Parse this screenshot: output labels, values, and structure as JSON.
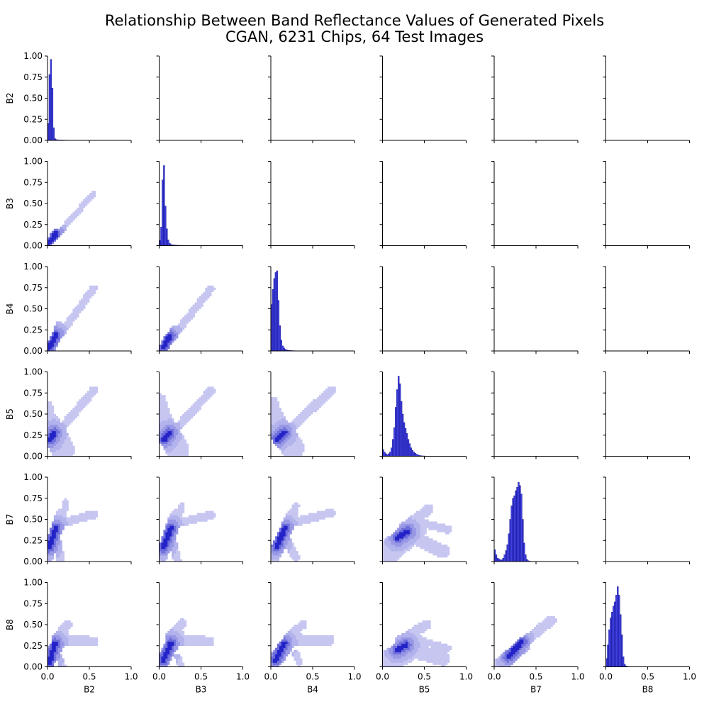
{
  "title_lines": [
    "Relationship Between Band Reflectance Values of Generated Pixels",
    "CGAN, 6231 Chips, 64 Test Images"
  ],
  "colors": {
    "hist_fill": "#1f1fd6",
    "hist_edge": "#0a0a8a",
    "density_light": "#c9c9f2",
    "density_dark": "#2323c8",
    "axis": "#000000"
  },
  "chart_data": {
    "type": "pairplot",
    "bands": [
      "B2",
      "B3",
      "B4",
      "B5",
      "B7",
      "B8"
    ],
    "xlim": [
      0.0,
      1.0
    ],
    "ylim": [
      0.0,
      1.0
    ],
    "x_ticks": [
      "0.0",
      "0.5",
      "1.0"
    ],
    "y_ticks": [
      "0.00",
      "0.25",
      "0.50",
      "0.75",
      "1.00"
    ],
    "grid": false,
    "diagonal_type": "histogram",
    "diagonal_histograms": [
      {
        "band": "B2",
        "bin_width": 0.0167,
        "values": [
          0.2,
          0.78,
          0.96,
          0.62,
          0.15,
          0.02,
          0.01,
          0.005,
          0.005,
          0.005,
          0.004,
          0.004,
          0.003,
          0.003,
          0.003,
          0.002,
          0.002,
          0.002,
          0.002,
          0.002,
          0.001,
          0.001,
          0.001,
          0.001,
          0.001,
          0.001,
          0.001,
          0.001,
          0.001,
          0.001,
          0.001,
          0.001,
          0.001,
          0.001,
          0.001,
          0.001
        ]
      },
      {
        "band": "B3",
        "bin_width": 0.0167,
        "values": [
          0.06,
          0.22,
          0.78,
          0.95,
          0.47,
          0.2,
          0.07,
          0.03,
          0.015,
          0.01,
          0.008,
          0.006,
          0.005,
          0.004,
          0.004,
          0.003,
          0.003,
          0.002,
          0.002,
          0.002,
          0.001,
          0.001,
          0.001,
          0.001,
          0.001,
          0.001,
          0.001,
          0.001,
          0.001,
          0.001,
          0.001,
          0.001,
          0.001,
          0.001,
          0.001,
          0.001
        ]
      },
      {
        "band": "B4",
        "bin_width": 0.0167,
        "values": [
          0.55,
          0.73,
          0.86,
          0.93,
          0.95,
          0.6,
          0.3,
          0.13,
          0.06,
          0.035,
          0.02,
          0.012,
          0.008,
          0.006,
          0.005,
          0.004,
          0.003,
          0.003,
          0.002,
          0.002,
          0.002,
          0.001,
          0.001,
          0.001,
          0.001,
          0.001,
          0.001,
          0.001,
          0.001,
          0.001,
          0.001,
          0.001,
          0.001,
          0.001,
          0.001,
          0.001,
          0.001,
          0.001,
          0.001,
          0.001,
          0.001,
          0.001,
          0.001,
          0.001,
          0.001,
          0.001,
          0.001
        ]
      },
      {
        "band": "B5",
        "bin_width": 0.0167,
        "values": [
          0.08,
          0.05,
          0.03,
          0.02,
          0.03,
          0.05,
          0.1,
          0.2,
          0.34,
          0.58,
          0.79,
          0.95,
          0.86,
          0.65,
          0.5,
          0.4,
          0.33,
          0.27,
          0.2,
          0.15,
          0.1,
          0.07,
          0.05,
          0.035,
          0.025,
          0.015,
          0.01,
          0.007,
          0.005,
          0.004,
          0.003,
          0.002,
          0.002,
          0.002,
          0.001,
          0.001,
          0.001,
          0.001,
          0.001,
          0.001,
          0.001,
          0.001,
          0.001,
          0.001,
          0.001,
          0.001,
          0.001
        ]
      },
      {
        "band": "B7",
        "bin_width": 0.0167,
        "values": [
          0.14,
          0.08,
          0.04,
          0.03,
          0.02,
          0.02,
          0.04,
          0.08,
          0.13,
          0.2,
          0.33,
          0.5,
          0.66,
          0.75,
          0.78,
          0.84,
          0.88,
          0.94,
          0.9,
          0.8,
          0.5,
          0.22,
          0.08,
          0.025,
          0.01,
          0.005,
          0.003,
          0.002,
          0.002,
          0.001,
          0.001,
          0.001,
          0.001,
          0.001,
          0.001,
          0.001,
          0.001,
          0.001,
          0.001,
          0.001,
          0.001,
          0.001,
          0.001,
          0.001,
          0.001,
          0.001,
          0.001,
          0.001
        ]
      },
      {
        "band": "B8",
        "bin_width": 0.0167,
        "values": [
          0.1,
          0.26,
          0.44,
          0.58,
          0.65,
          0.72,
          0.77,
          0.85,
          0.95,
          0.85,
          0.62,
          0.38,
          0.12,
          0.03,
          0.01,
          0.005,
          0.003,
          0.002,
          0.002,
          0.001,
          0.001,
          0.001,
          0.001,
          0.001,
          0.001,
          0.001,
          0.001,
          0.001,
          0.001,
          0.001,
          0.001,
          0.001,
          0.001,
          0.001,
          0.001,
          0.001,
          0.001,
          0.001,
          0.001,
          0.001,
          0.001,
          0.001,
          0.001,
          0.001,
          0.001,
          0.001,
          0.001,
          0.001
        ]
      }
    ],
    "lower_type": "2d-histogram",
    "lower_cell_size": 0.025,
    "lower_density": [
      {
        "x": "B2",
        "y": "B3",
        "core": {
          "x0": 0.02,
          "y0": 0.04,
          "x1": 0.1,
          "y1": 0.14
        },
        "blobs": [
          {
            "x0": 0.02,
            "y0": 0.02,
            "x1": 0.55,
            "y1": 0.62,
            "w": 0.035
          }
        ]
      },
      {
        "x": "B2",
        "y": "B4",
        "core": {
          "x0": 0.02,
          "y0": 0.04,
          "x1": 0.1,
          "y1": 0.19
        },
        "blobs": [
          {
            "x0": 0.02,
            "y0": 0.02,
            "x1": 0.55,
            "y1": 0.74,
            "w": 0.045
          },
          {
            "x0": 0.04,
            "y0": 0.0,
            "x1": 0.14,
            "y1": 0.3,
            "w": 0.05
          }
        ]
      },
      {
        "x": "B3",
        "y": "B4",
        "core": {
          "x0": 0.05,
          "y0": 0.05,
          "x1": 0.13,
          "y1": 0.18
        },
        "blobs": [
          {
            "x0": 0.05,
            "y0": 0.03,
            "x1": 0.62,
            "y1": 0.74,
            "w": 0.045
          },
          {
            "x0": 0.06,
            "y0": 0.0,
            "x1": 0.18,
            "y1": 0.26,
            "w": 0.04
          }
        ]
      },
      {
        "x": "B2",
        "y": "B5",
        "core": {
          "x0": 0.03,
          "y0": 0.2,
          "x1": 0.08,
          "y1": 0.28
        },
        "blobs": [
          {
            "x0": 0.0,
            "y0": 0.4,
            "x1": 0.18,
            "y1": 0.08,
            "w": 0.14
          },
          {
            "x0": 0.12,
            "y0": 0.28,
            "x1": 0.55,
            "y1": 0.78,
            "w": 0.05
          },
          {
            "x0": 0.06,
            "y0": 0.25,
            "x1": 0.14,
            "y1": 0.0,
            "w": 0.05
          },
          {
            "x0": 0.0,
            "y0": 0.6,
            "x1": 0.08,
            "y1": 0.3,
            "w": 0.06
          }
        ]
      },
      {
        "x": "B3",
        "y": "B5",
        "core": {
          "x0": 0.06,
          "y0": 0.2,
          "x1": 0.12,
          "y1": 0.28
        },
        "blobs": [
          {
            "x0": 0.02,
            "y0": 0.42,
            "x1": 0.22,
            "y1": 0.08,
            "w": 0.14
          },
          {
            "x0": 0.18,
            "y0": 0.3,
            "x1": 0.62,
            "y1": 0.78,
            "w": 0.05
          },
          {
            "x0": 0.1,
            "y0": 0.25,
            "x1": 0.24,
            "y1": 0.0,
            "w": 0.05
          },
          {
            "x0": 0.02,
            "y0": 0.68,
            "x1": 0.12,
            "y1": 0.3,
            "w": 0.06
          }
        ]
      },
      {
        "x": "B4",
        "y": "B5",
        "core": {
          "x0": 0.07,
          "y0": 0.2,
          "x1": 0.16,
          "y1": 0.28
        },
        "blobs": [
          {
            "x0": 0.02,
            "y0": 0.42,
            "x1": 0.26,
            "y1": 0.1,
            "w": 0.14
          },
          {
            "x0": 0.2,
            "y0": 0.3,
            "x1": 0.72,
            "y1": 0.78,
            "w": 0.055
          },
          {
            "x0": 0.12,
            "y0": 0.25,
            "x1": 0.26,
            "y1": 0.0,
            "w": 0.05
          },
          {
            "x0": 0.02,
            "y0": 0.65,
            "x1": 0.14,
            "y1": 0.35,
            "w": 0.06
          }
        ]
      },
      {
        "x": "B2",
        "y": "B7",
        "core": {
          "x0": 0.02,
          "y0": 0.17,
          "x1": 0.1,
          "y1": 0.4
        },
        "blobs": [
          {
            "x0": 0.0,
            "y0": 0.05,
            "x1": 0.16,
            "y1": 0.55,
            "w": 0.07
          },
          {
            "x0": 0.15,
            "y0": 0.45,
            "x1": 0.55,
            "y1": 0.56,
            "w": 0.05
          },
          {
            "x0": 0.14,
            "y0": 0.35,
            "x1": 0.22,
            "y1": 0.7,
            "w": 0.04
          },
          {
            "x0": 0.1,
            "y0": 0.3,
            "x1": 0.16,
            "y1": 0.0,
            "w": 0.05
          }
        ]
      },
      {
        "x": "B3",
        "y": "B7",
        "core": {
          "x0": 0.05,
          "y0": 0.17,
          "x1": 0.14,
          "y1": 0.4
        },
        "blobs": [
          {
            "x0": 0.02,
            "y0": 0.05,
            "x1": 0.2,
            "y1": 0.55,
            "w": 0.07
          },
          {
            "x0": 0.18,
            "y0": 0.45,
            "x1": 0.62,
            "y1": 0.55,
            "w": 0.05
          },
          {
            "x0": 0.18,
            "y0": 0.35,
            "x1": 0.27,
            "y1": 0.66,
            "w": 0.04
          },
          {
            "x0": 0.14,
            "y0": 0.3,
            "x1": 0.22,
            "y1": 0.0,
            "w": 0.05
          }
        ]
      },
      {
        "x": "B4",
        "y": "B7",
        "core": {
          "x0": 0.07,
          "y0": 0.18,
          "x1": 0.17,
          "y1": 0.4
        },
        "blobs": [
          {
            "x0": 0.03,
            "y0": 0.05,
            "x1": 0.26,
            "y1": 0.55,
            "w": 0.075
          },
          {
            "x0": 0.22,
            "y0": 0.45,
            "x1": 0.72,
            "y1": 0.58,
            "w": 0.05
          },
          {
            "x0": 0.2,
            "y0": 0.5,
            "x1": 0.3,
            "y1": 0.66,
            "w": 0.04
          },
          {
            "x0": 0.16,
            "y0": 0.3,
            "x1": 0.3,
            "y1": 0.05,
            "w": 0.05
          }
        ]
      },
      {
        "x": "B5",
        "y": "B7",
        "core": {
          "x0": 0.18,
          "y0": 0.28,
          "x1": 0.3,
          "y1": 0.36
        },
        "blobs": [
          {
            "x0": 0.0,
            "y0": 0.05,
            "x1": 0.38,
            "y1": 0.38,
            "w": 0.14
          },
          {
            "x0": 0.3,
            "y0": 0.32,
            "x1": 0.72,
            "y1": 0.12,
            "w": 0.08
          },
          {
            "x0": 0.25,
            "y0": 0.4,
            "x1": 0.55,
            "y1": 0.62,
            "w": 0.06
          },
          {
            "x0": 0.5,
            "y0": 0.45,
            "x1": 0.78,
            "y1": 0.38,
            "w": 0.05
          }
        ]
      },
      {
        "x": "B2",
        "y": "B8",
        "core": {
          "x0": 0.02,
          "y0": 0.05,
          "x1": 0.09,
          "y1": 0.28
        },
        "blobs": [
          {
            "x0": 0.0,
            "y0": 0.05,
            "x1": 0.18,
            "y1": 0.38,
            "w": 0.08
          },
          {
            "x0": 0.15,
            "y0": 0.32,
            "x1": 0.55,
            "y1": 0.3,
            "w": 0.06
          },
          {
            "x0": 0.1,
            "y0": 0.35,
            "x1": 0.24,
            "y1": 0.5,
            "w": 0.05
          },
          {
            "x0": 0.14,
            "y0": 0.12,
            "x1": 0.18,
            "y1": 0.0,
            "w": 0.04
          }
        ]
      },
      {
        "x": "B3",
        "y": "B8",
        "core": {
          "x0": 0.05,
          "y0": 0.08,
          "x1": 0.14,
          "y1": 0.28
        },
        "blobs": [
          {
            "x0": 0.03,
            "y0": 0.05,
            "x1": 0.22,
            "y1": 0.38,
            "w": 0.08
          },
          {
            "x0": 0.18,
            "y0": 0.32,
            "x1": 0.6,
            "y1": 0.3,
            "w": 0.06
          },
          {
            "x0": 0.12,
            "y0": 0.35,
            "x1": 0.28,
            "y1": 0.52,
            "w": 0.05
          },
          {
            "x0": 0.22,
            "y0": 0.12,
            "x1": 0.26,
            "y1": 0.0,
            "w": 0.04
          }
        ]
      },
      {
        "x": "B4",
        "y": "B8",
        "core": {
          "x0": 0.06,
          "y0": 0.08,
          "x1": 0.16,
          "y1": 0.28
        },
        "blobs": [
          {
            "x0": 0.02,
            "y0": 0.04,
            "x1": 0.28,
            "y1": 0.38,
            "w": 0.085
          },
          {
            "x0": 0.22,
            "y0": 0.3,
            "x1": 0.7,
            "y1": 0.32,
            "w": 0.06
          },
          {
            "x0": 0.2,
            "y0": 0.35,
            "x1": 0.38,
            "y1": 0.5,
            "w": 0.05
          },
          {
            "x0": 0.3,
            "y0": 0.15,
            "x1": 0.34,
            "y1": 0.05,
            "w": 0.04
          }
        ]
      },
      {
        "x": "B5",
        "y": "B8",
        "core": {
          "x0": 0.18,
          "y0": 0.2,
          "x1": 0.28,
          "y1": 0.26
        },
        "blobs": [
          {
            "x0": 0.0,
            "y0": 0.02,
            "x1": 0.38,
            "y1": 0.25,
            "w": 0.14
          },
          {
            "x0": 0.28,
            "y0": 0.22,
            "x1": 0.72,
            "y1": 0.1,
            "w": 0.09
          },
          {
            "x0": 0.2,
            "y0": 0.3,
            "x1": 0.52,
            "y1": 0.5,
            "w": 0.06
          },
          {
            "x0": 0.5,
            "y0": 0.3,
            "x1": 0.78,
            "y1": 0.22,
            "w": 0.04
          }
        ]
      },
      {
        "x": "B7",
        "y": "B8",
        "core": {
          "x0": 0.17,
          "y0": 0.12,
          "x1": 0.33,
          "y1": 0.3
        },
        "blobs": [
          {
            "x0": 0.02,
            "y0": 0.02,
            "x1": 0.68,
            "y1": 0.55,
            "w": 0.06
          },
          {
            "x0": 0.1,
            "y0": 0.0,
            "x1": 0.38,
            "y1": 0.24,
            "w": 0.05
          }
        ]
      }
    ]
  }
}
